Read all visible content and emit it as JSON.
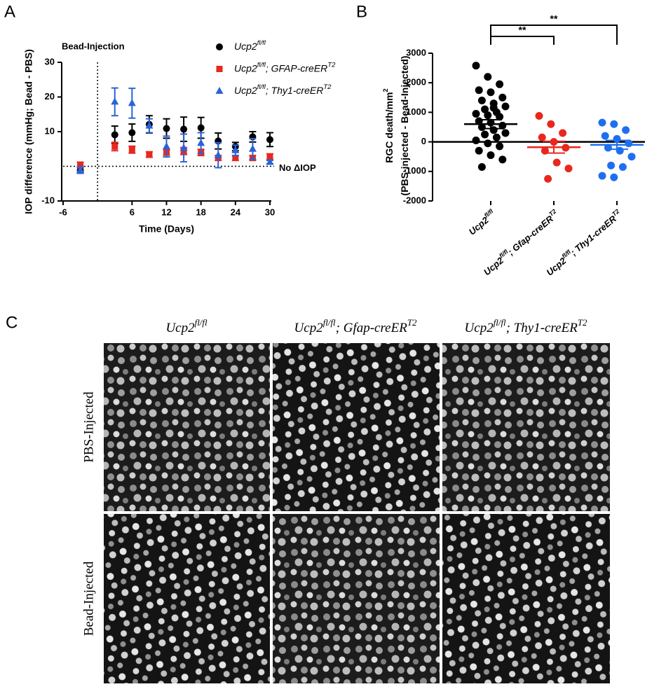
{
  "panel_labels": [
    "A",
    "B",
    "C"
  ],
  "chart_data": [
    {
      "type": "errorbar-line",
      "x_label": "Time (Days)",
      "y_label": "IOP difference (mmHg; Bead - PBS)",
      "annotations": [
        "Bead-Injection",
        "No ΔIOP"
      ],
      "x": [
        -3,
        3,
        6,
        9,
        12,
        15,
        18,
        21,
        24,
        27,
        30
      ],
      "xlim": [
        -6,
        30
      ],
      "xticks": [
        -6,
        6,
        12,
        18,
        24,
        30
      ],
      "ylim": [
        -10,
        30
      ],
      "yticks": [
        -10,
        10,
        20,
        30
      ],
      "series": [
        {
          "name": [
            "Ucp2",
            "fl/fl"
          ],
          "color": "#000000",
          "marker": "circle",
          "values": [
            -1.2,
            9.1,
            9.7,
            12.1,
            10.9,
            10.7,
            11.1,
            7.3,
            5.7,
            8.5,
            7.7
          ],
          "errors": [
            0.8,
            2.5,
            2.5,
            2.5,
            2.8,
            3.5,
            3,
            2.3,
            1.2,
            1.5,
            2
          ]
        },
        {
          "name": [
            "Ucp2",
            "fl/fl",
            "; GFAP-creER",
            "T2"
          ],
          "color": "#e8281e",
          "marker": "square",
          "values": [
            0.4,
            5.7,
            4.8,
            3.4,
            4,
            4.4,
            4,
            2.4,
            2.4,
            2.4,
            2.8
          ],
          "errors": [
            0.8,
            1.2,
            1,
            0.8,
            0.8,
            1,
            0.9,
            0.7,
            0.7,
            0.7,
            0.8
          ]
        },
        {
          "name": [
            "Ucp2",
            "fl/fl",
            "; Thy1-creER",
            "T2"
          ],
          "color": "#2a63d6",
          "marker": "triangle",
          "values": [
            -1,
            18.6,
            18.2,
            11.7,
            5.7,
            5.3,
            6.7,
            3.2,
            4.6,
            5,
            1.2
          ],
          "errors": [
            1,
            4,
            4.3,
            2,
            3,
            4,
            3,
            3.6,
            1.5,
            3,
            0.5
          ]
        }
      ]
    },
    {
      "type": "strip",
      "y_label": [
        [
          "RGC death/mm",
          "2"
        ],
        [
          "(PBS-injected - Bead-Injected)"
        ]
      ],
      "ylim": [
        -2000,
        3000
      ],
      "yticks": [
        -2000,
        -1000,
        0,
        1000,
        2000,
        3000
      ],
      "categories": [
        [
          "Ucp2",
          "fl/fl"
        ],
        [
          "Ucp2",
          "fl/fl",
          "; Gfap-creER",
          "T2"
        ],
        [
          "Ucp2",
          "fl/fl",
          "; Thy1-creER",
          "T2"
        ]
      ],
      "significance": [
        "**",
        "**"
      ],
      "groups": [
        {
          "color": "#000000",
          "mean": 600,
          "sem": 150,
          "values": [
            2580,
            2200,
            1950,
            1750,
            1680,
            1500,
            1400,
            1300,
            1200,
            1100,
            1000,
            950,
            900,
            850,
            700,
            650,
            550,
            500,
            400,
            300,
            250,
            150,
            50,
            -50,
            -150,
            -300,
            -450,
            -600,
            -850,
            1150
          ]
        },
        {
          "color": "#e8281e",
          "mean": -180,
          "sem": 200,
          "values": [
            880,
            600,
            300,
            150,
            0,
            -200,
            -300,
            -700,
            -900,
            -1250
          ]
        },
        {
          "color": "#1e6ff0",
          "mean": -100,
          "sem": 150,
          "values": [
            650,
            600,
            400,
            200,
            100,
            -50,
            -200,
            -300,
            -500,
            -800,
            -850,
            -1150,
            -1200
          ]
        }
      ]
    }
  ],
  "image_grid": {
    "columns": [
      [
        "Ucp2",
        "fl/fl"
      ],
      [
        "Ucp2",
        "fl/fl",
        "; Gfap-creER",
        "T2"
      ],
      [
        "Ucp2",
        "fl/fl",
        "; Thy1-creER",
        "T2"
      ]
    ],
    "rows": [
      "PBS-Injected",
      "Bead-Injected"
    ]
  }
}
